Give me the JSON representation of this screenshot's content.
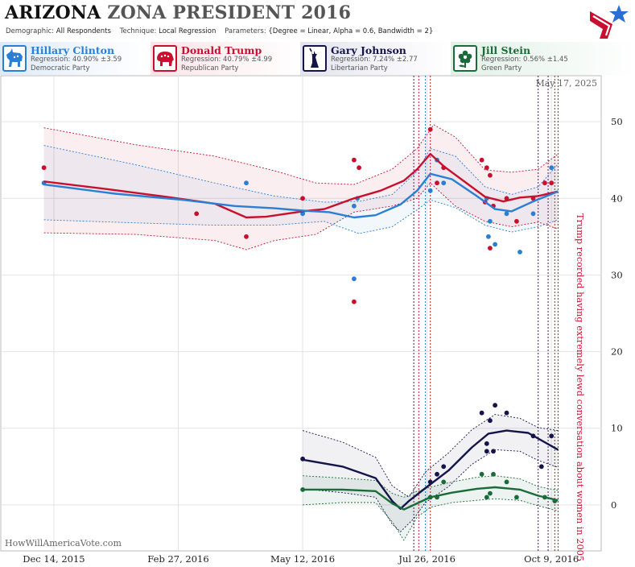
{
  "header": {
    "state": "ARIZONA",
    "rest": "ZONA PRESIDENT 2016",
    "demographic_key": "Demographic:",
    "demographic_val": "All Respondents",
    "technique_key": "Technique:",
    "technique_val": "Local Regression",
    "parameters_key": "Parameters:",
    "parameters_val": "{Degree = Linear, Alpha = 0.6, Bandwidth = 2}"
  },
  "candidates": [
    {
      "name": "Hillary Clinton",
      "regression": "Regression: 40.90% ±3.59",
      "party": "Democratic Party",
      "color": "#2a7fd4",
      "icon": "donkey-icon"
    },
    {
      "name": "Donald Trump",
      "regression": "Regression: 40.79% ±4.99",
      "party": "Republican Party",
      "color": "#c8102e",
      "icon": "elephant-icon"
    },
    {
      "name": "Gary Johnson",
      "regression": "Regression: 7.24% ±2.77",
      "party": "Libertarian Party",
      "color": "#14134a",
      "icon": "liberty-statue-icon"
    },
    {
      "name": "Jill Stein",
      "regression": "Regression: 0.56% ±1.45",
      "party": "Green Party",
      "color": "#1a6b3a",
      "icon": "flower-icon"
    }
  ],
  "chart_data": {
    "type": "line",
    "date_label": "May 17, 2025",
    "watermark": "HowWillAmericaVote.com",
    "annotation": "Trump recorded having extremely lewd conversation about women in 2005",
    "x_ticks": [
      "Dec 14, 2015",
      "Feb 27, 2016",
      "May 12, 2016",
      "Jul 26, 2016",
      "Oct 9, 2016"
    ],
    "xlim": [
      "2015-11-12",
      "2016-11-08"
    ],
    "ylim": [
      -6,
      56
    ],
    "y_ticks": [
      0,
      10,
      20,
      30,
      40,
      50
    ],
    "event_lines": [
      "2016-07-18",
      "2016-07-21",
      "2016-07-25",
      "2016-07-28",
      "2016-10-01",
      "2016-10-07",
      "2016-10-11",
      "2016-10-13"
    ],
    "series": [
      {
        "name": "Donald Trump",
        "color": "#c8102e",
        "band_fill": "rgba(200,16,46,0.07)",
        "line": [
          [
            "2015-12-08",
            42.2
          ],
          [
            "2016-01-15",
            41.2
          ],
          [
            "2016-02-20",
            40.2
          ],
          [
            "2016-03-20",
            39.3
          ],
          [
            "2016-04-08",
            37.5
          ],
          [
            "2016-04-20",
            37.6
          ],
          [
            "2016-05-12",
            38.3
          ],
          [
            "2016-05-25",
            38.6
          ],
          [
            "2016-06-12",
            40.0
          ],
          [
            "2016-06-28",
            41.0
          ],
          [
            "2016-07-12",
            42.3
          ],
          [
            "2016-07-20",
            43.8
          ],
          [
            "2016-07-28",
            45.8
          ],
          [
            "2016-08-05",
            44.2
          ],
          [
            "2016-08-20",
            41.8
          ],
          [
            "2016-08-30",
            40.2
          ],
          [
            "2016-09-10",
            39.6
          ],
          [
            "2016-09-20",
            40.1
          ],
          [
            "2016-10-01",
            40.3
          ],
          [
            "2016-10-13",
            40.9
          ]
        ],
        "upper": [
          [
            "2015-12-08",
            49.2
          ],
          [
            "2016-02-01",
            47.0
          ],
          [
            "2016-03-20",
            45.5
          ],
          [
            "2016-04-25",
            43.6
          ],
          [
            "2016-05-20",
            42.0
          ],
          [
            "2016-06-12",
            41.8
          ],
          [
            "2016-07-05",
            43.8
          ],
          [
            "2016-07-20",
            46.5
          ],
          [
            "2016-07-30",
            49.6
          ],
          [
            "2016-08-12",
            48.0
          ],
          [
            "2016-08-30",
            43.7
          ],
          [
            "2016-09-15",
            43.4
          ],
          [
            "2016-10-01",
            43.8
          ],
          [
            "2016-10-13",
            45.8
          ]
        ],
        "lower": [
          [
            "2015-12-08",
            35.5
          ],
          [
            "2016-02-01",
            35.3
          ],
          [
            "2016-03-20",
            34.5
          ],
          [
            "2016-04-08",
            33.3
          ],
          [
            "2016-04-25",
            34.5
          ],
          [
            "2016-05-20",
            35.3
          ],
          [
            "2016-06-12",
            38.2
          ],
          [
            "2016-07-05",
            39.0
          ],
          [
            "2016-07-20",
            40.0
          ],
          [
            "2016-07-28",
            42.0
          ],
          [
            "2016-08-12",
            39.0
          ],
          [
            "2016-08-30",
            37.0
          ],
          [
            "2016-09-15",
            36.3
          ],
          [
            "2016-10-01",
            36.9
          ],
          [
            "2016-10-13",
            36.0
          ]
        ],
        "points": [
          [
            "2015-12-08",
            44
          ],
          [
            "2016-03-09",
            38
          ],
          [
            "2016-04-08",
            35
          ],
          [
            "2016-05-12",
            40
          ],
          [
            "2016-06-12",
            45
          ],
          [
            "2016-06-15",
            44
          ],
          [
            "2016-06-12",
            26.5
          ],
          [
            "2016-07-28",
            49
          ],
          [
            "2016-08-01",
            42
          ],
          [
            "2016-08-05",
            44
          ],
          [
            "2016-08-28",
            45
          ],
          [
            "2016-08-31",
            44
          ],
          [
            "2016-09-02",
            43
          ],
          [
            "2016-08-30",
            39.5
          ],
          [
            "2016-09-04",
            39
          ],
          [
            "2016-09-02",
            33.5
          ],
          [
            "2016-09-12",
            40
          ],
          [
            "2016-09-18",
            37
          ],
          [
            "2016-09-28",
            40
          ],
          [
            "2016-10-05",
            42
          ],
          [
            "2016-10-09",
            42
          ]
        ]
      },
      {
        "name": "Hillary Clinton",
        "color": "#2a7fd4",
        "band_fill": "rgba(42,127,212,0.06)",
        "line": [
          [
            "2015-12-08",
            41.8
          ],
          [
            "2016-01-20",
            40.6
          ],
          [
            "2016-03-01",
            39.8
          ],
          [
            "2016-04-01",
            39.0
          ],
          [
            "2016-04-25",
            38.7
          ],
          [
            "2016-05-12",
            38.4
          ],
          [
            "2016-05-28",
            38.2
          ],
          [
            "2016-06-12",
            37.5
          ],
          [
            "2016-06-25",
            37.8
          ],
          [
            "2016-07-10",
            39.2
          ],
          [
            "2016-07-20",
            41.0
          ],
          [
            "2016-07-28",
            43.2
          ],
          [
            "2016-08-10",
            42.5
          ],
          [
            "2016-08-25",
            40.3
          ],
          [
            "2016-09-05",
            38.6
          ],
          [
            "2016-09-15",
            38.3
          ],
          [
            "2016-09-28",
            39.6
          ],
          [
            "2016-10-13",
            40.9
          ]
        ],
        "upper": [
          [
            "2015-12-08",
            46.9
          ],
          [
            "2016-02-01",
            44.4
          ],
          [
            "2016-03-20",
            42.0
          ],
          [
            "2016-04-25",
            40.3
          ],
          [
            "2016-05-25",
            39.5
          ],
          [
            "2016-06-15",
            39.6
          ],
          [
            "2016-07-05",
            40.5
          ],
          [
            "2016-07-20",
            43.5
          ],
          [
            "2016-07-28",
            46.5
          ],
          [
            "2016-08-12",
            45.5
          ],
          [
            "2016-08-30",
            41.5
          ],
          [
            "2016-09-15",
            40.5
          ],
          [
            "2016-10-01",
            41.5
          ],
          [
            "2016-10-13",
            44.5
          ]
        ],
        "lower": [
          [
            "2015-12-08",
            37.2
          ],
          [
            "2016-02-01",
            36.8
          ],
          [
            "2016-03-20",
            36.5
          ],
          [
            "2016-04-25",
            36.5
          ],
          [
            "2016-05-25",
            37.0
          ],
          [
            "2016-06-15",
            35.4
          ],
          [
            "2016-07-05",
            36.3
          ],
          [
            "2016-07-20",
            38.5
          ],
          [
            "2016-07-28",
            39.8
          ],
          [
            "2016-08-12",
            38.8
          ],
          [
            "2016-08-30",
            36.5
          ],
          [
            "2016-09-15",
            35.6
          ],
          [
            "2016-10-01",
            36.3
          ],
          [
            "2016-10-13",
            37.2
          ]
        ],
        "points": [
          [
            "2015-12-08",
            42
          ],
          [
            "2016-04-08",
            42
          ],
          [
            "2016-05-12",
            38
          ],
          [
            "2016-06-12",
            39
          ],
          [
            "2016-06-14",
            40
          ],
          [
            "2016-06-12",
            29.5
          ],
          [
            "2016-07-28",
            41
          ],
          [
            "2016-08-01",
            45
          ],
          [
            "2016-08-05",
            42
          ],
          [
            "2016-08-31",
            40
          ],
          [
            "2016-09-02",
            37
          ],
          [
            "2016-09-01",
            35
          ],
          [
            "2016-09-05",
            34
          ],
          [
            "2016-09-12",
            38
          ],
          [
            "2016-09-20",
            33
          ],
          [
            "2016-09-28",
            38
          ],
          [
            "2016-10-09",
            44
          ]
        ]
      },
      {
        "name": "Gary Johnson",
        "color": "#14134a",
        "band_fill": "rgba(20,19,74,0.06)",
        "line": [
          [
            "2016-05-12",
            5.9
          ],
          [
            "2016-06-05",
            5.0
          ],
          [
            "2016-06-25",
            3.5
          ],
          [
            "2016-07-05",
            0.5
          ],
          [
            "2016-07-10",
            -0.5
          ],
          [
            "2016-07-15",
            0.5
          ],
          [
            "2016-07-25",
            2.2
          ],
          [
            "2016-08-08",
            4.5
          ],
          [
            "2016-08-22",
            7.5
          ],
          [
            "2016-09-01",
            9.3
          ],
          [
            "2016-09-12",
            9.7
          ],
          [
            "2016-09-25",
            9.4
          ],
          [
            "2016-10-13",
            7.2
          ]
        ],
        "upper": [
          [
            "2016-05-12",
            9.7
          ],
          [
            "2016-06-05",
            8.2
          ],
          [
            "2016-06-25",
            6.2
          ],
          [
            "2016-07-05",
            2.5
          ],
          [
            "2016-07-15",
            1.0
          ],
          [
            "2016-07-25",
            4.3
          ],
          [
            "2016-08-08",
            6.8
          ],
          [
            "2016-08-22",
            9.8
          ],
          [
            "2016-09-05",
            11.8
          ],
          [
            "2016-09-20",
            11.3
          ],
          [
            "2016-10-01",
            10.1
          ],
          [
            "2016-10-13",
            9.7
          ]
        ],
        "lower": [
          [
            "2016-05-12",
            2.1
          ],
          [
            "2016-06-05",
            1.6
          ],
          [
            "2016-06-25",
            1.0
          ],
          [
            "2016-07-05",
            -2.5
          ],
          [
            "2016-07-10",
            -3.5
          ],
          [
            "2016-07-18",
            -1.8
          ],
          [
            "2016-07-25",
            0.3
          ],
          [
            "2016-08-08",
            2.4
          ],
          [
            "2016-08-22",
            5.3
          ],
          [
            "2016-09-05",
            7.2
          ],
          [
            "2016-09-20",
            7.0
          ],
          [
            "2016-10-01",
            5.8
          ],
          [
            "2016-10-13",
            4.9
          ]
        ],
        "points": [
          [
            "2016-05-12",
            6
          ],
          [
            "2016-07-28",
            3
          ],
          [
            "2016-08-01",
            4
          ],
          [
            "2016-08-05",
            5
          ],
          [
            "2016-08-28",
            12
          ],
          [
            "2016-08-31",
            8
          ],
          [
            "2016-08-31",
            7
          ],
          [
            "2016-09-02",
            11
          ],
          [
            "2016-09-05",
            13
          ],
          [
            "2016-09-04",
            7
          ],
          [
            "2016-09-12",
            12
          ],
          [
            "2016-09-28",
            9
          ],
          [
            "2016-10-03",
            5
          ],
          [
            "2016-10-09",
            9
          ]
        ]
      },
      {
        "name": "Jill Stein",
        "color": "#1a6b3a",
        "band_fill": "rgba(26,107,58,0.08)",
        "line": [
          [
            "2016-05-12",
            2.0
          ],
          [
            "2016-06-05",
            2.0
          ],
          [
            "2016-06-25",
            1.8
          ],
          [
            "2016-07-05",
            0.2
          ],
          [
            "2016-07-12",
            -0.6
          ],
          [
            "2016-07-20",
            0.2
          ],
          [
            "2016-07-28",
            1.0
          ],
          [
            "2016-08-10",
            1.6
          ],
          [
            "2016-08-25",
            2.1
          ],
          [
            "2016-09-05",
            2.3
          ],
          [
            "2016-09-20",
            2.0
          ],
          [
            "2016-10-01",
            1.2
          ],
          [
            "2016-10-13",
            0.6
          ]
        ],
        "upper": [
          [
            "2016-05-12",
            3.8
          ],
          [
            "2016-06-05",
            3.5
          ],
          [
            "2016-06-25",
            3.2
          ],
          [
            "2016-07-05",
            1.5
          ],
          [
            "2016-07-12",
            1.0
          ],
          [
            "2016-07-20",
            1.8
          ],
          [
            "2016-07-28",
            2.3
          ],
          [
            "2016-08-10",
            3.0
          ],
          [
            "2016-08-25",
            3.6
          ],
          [
            "2016-09-05",
            3.8
          ],
          [
            "2016-09-20",
            3.4
          ],
          [
            "2016-10-01",
            2.4
          ],
          [
            "2016-10-13",
            1.9
          ]
        ],
        "lower": [
          [
            "2016-05-12",
            0.0
          ],
          [
            "2016-06-05",
            0.3
          ],
          [
            "2016-06-25",
            0.3
          ],
          [
            "2016-07-05",
            -2.2
          ],
          [
            "2016-07-12",
            -4.6
          ],
          [
            "2016-07-20",
            -1.6
          ],
          [
            "2016-07-28",
            -0.3
          ],
          [
            "2016-08-10",
            0.3
          ],
          [
            "2016-08-25",
            0.6
          ],
          [
            "2016-09-05",
            0.8
          ],
          [
            "2016-09-20",
            0.6
          ],
          [
            "2016-10-01",
            -0.1
          ],
          [
            "2016-10-13",
            -0.8
          ]
        ],
        "points": [
          [
            "2016-05-12",
            2
          ],
          [
            "2016-07-28",
            1
          ],
          [
            "2016-08-01",
            1
          ],
          [
            "2016-08-05",
            3
          ],
          [
            "2016-08-28",
            4
          ],
          [
            "2016-08-31",
            1
          ],
          [
            "2016-09-02",
            1.5
          ],
          [
            "2016-09-04",
            4
          ],
          [
            "2016-09-12",
            3
          ],
          [
            "2016-09-18",
            1
          ],
          [
            "2016-10-05",
            1
          ],
          [
            "2016-10-11",
            0.5
          ]
        ]
      }
    ]
  }
}
